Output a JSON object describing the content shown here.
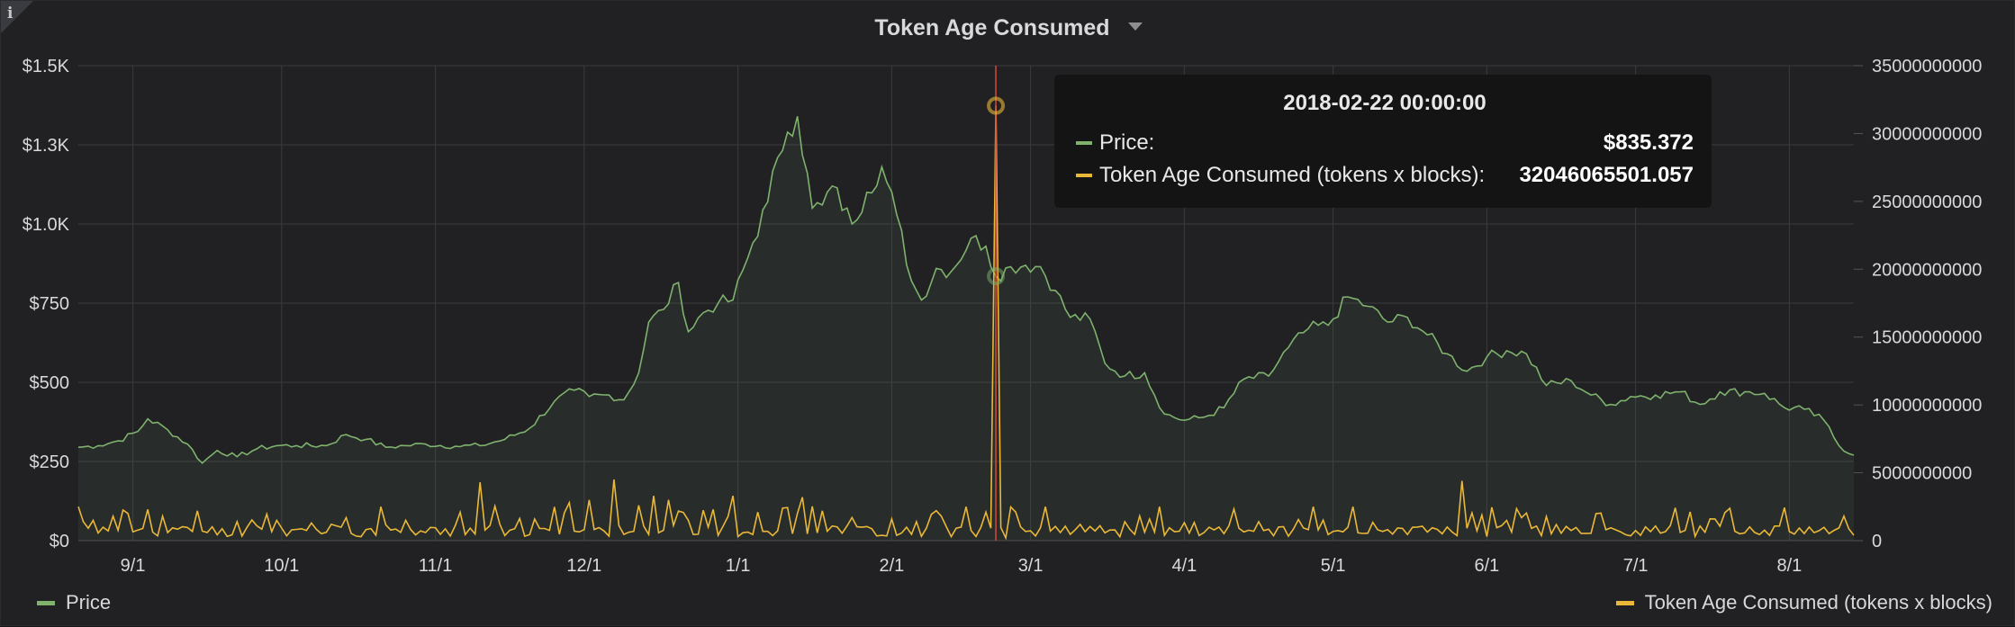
{
  "panel": {
    "title": "Token Age Consumed",
    "info_icon": "info-icon",
    "menu_icon": "caret-down-icon"
  },
  "colors": {
    "price": "#7eb26d",
    "tac": "#eab839",
    "cursor": "#d44a3a",
    "grid": "#3a3b3e",
    "tick": "#d8d9da"
  },
  "tooltip": {
    "time": "2018-02-22 00:00:00",
    "rows": [
      {
        "label": "Price:",
        "value": "$835.372"
      },
      {
        "label": "Token Age Consumed (tokens x blocks):",
        "value": "32046065501.057"
      }
    ]
  },
  "legend": {
    "left": "Price",
    "right": "Token Age Consumed (tokens x blocks)"
  },
  "chart_data": {
    "type": "line",
    "title": "Token Age Consumed",
    "x_range": [
      "2017-08-21",
      "2018-08-14"
    ],
    "x_ticks": [
      "9/1",
      "10/1",
      "11/1",
      "12/1",
      "1/1",
      "2/1",
      "3/1",
      "4/1",
      "5/1",
      "6/1",
      "7/1",
      "8/1"
    ],
    "y_left": {
      "min": 0,
      "max": 1500,
      "ticks": [
        "$0",
        "$250",
        "$500",
        "$750",
        "$1.0K",
        "$1.3K",
        "$1.5K"
      ]
    },
    "y_right": {
      "min": 0,
      "max": 35000000000,
      "ticks": [
        "0",
        "5000000000",
        "10000000000",
        "15000000000",
        "20000000000",
        "25000000000",
        "30000000000",
        "35000000000"
      ]
    },
    "grid": true,
    "legend_placement": "bottom",
    "cursor_date": "2018-02-22",
    "series": [
      {
        "name": "Price",
        "axis": "left",
        "fill": true,
        "points": [
          [
            "2017-08-21",
            295
          ],
          [
            "2017-08-25",
            300
          ],
          [
            "2017-08-29",
            315
          ],
          [
            "2017-09-02",
            345
          ],
          [
            "2017-09-04",
            385
          ],
          [
            "2017-09-08",
            350
          ],
          [
            "2017-09-12",
            305
          ],
          [
            "2017-09-15",
            245
          ],
          [
            "2017-09-18",
            285
          ],
          [
            "2017-09-22",
            265
          ],
          [
            "2017-09-26",
            290
          ],
          [
            "2017-09-30",
            300
          ],
          [
            "2017-10-04",
            300
          ],
          [
            "2017-10-10",
            300
          ],
          [
            "2017-10-14",
            335
          ],
          [
            "2017-10-18",
            320
          ],
          [
            "2017-10-22",
            295
          ],
          [
            "2017-10-26",
            300
          ],
          [
            "2017-10-30",
            305
          ],
          [
            "2017-11-05",
            298
          ],
          [
            "2017-11-10",
            300
          ],
          [
            "2017-11-15",
            320
          ],
          [
            "2017-11-20",
            355
          ],
          [
            "2017-11-25",
            440
          ],
          [
            "2017-11-29",
            475
          ],
          [
            "2017-12-02",
            455
          ],
          [
            "2017-12-06",
            460
          ],
          [
            "2017-12-09",
            445
          ],
          [
            "2017-12-12",
            530
          ],
          [
            "2017-12-14",
            690
          ],
          [
            "2017-12-17",
            730
          ],
          [
            "2017-12-20",
            815
          ],
          [
            "2017-12-22",
            660
          ],
          [
            "2017-12-25",
            720
          ],
          [
            "2017-12-28",
            750
          ],
          [
            "2017-12-31",
            760
          ],
          [
            "2018-01-04",
            940
          ],
          [
            "2018-01-07",
            1070
          ],
          [
            "2018-01-09",
            1210
          ],
          [
            "2018-01-11",
            1290
          ],
          [
            "2018-01-13",
            1340
          ],
          [
            "2018-01-16",
            1050
          ],
          [
            "2018-01-18",
            1060
          ],
          [
            "2018-01-20",
            1120
          ],
          [
            "2018-01-24",
            1000
          ],
          [
            "2018-01-27",
            1100
          ],
          [
            "2018-01-30",
            1180
          ],
          [
            "2018-02-02",
            1030
          ],
          [
            "2018-02-05",
            820
          ],
          [
            "2018-02-07",
            760
          ],
          [
            "2018-02-10",
            860
          ],
          [
            "2018-02-13",
            850
          ],
          [
            "2018-02-17",
            955
          ],
          [
            "2018-02-20",
            930
          ],
          [
            "2018-02-22",
            835
          ],
          [
            "2018-02-25",
            865
          ],
          [
            "2018-02-28",
            870
          ],
          [
            "2018-03-03",
            865
          ],
          [
            "2018-03-06",
            790
          ],
          [
            "2018-03-09",
            705
          ],
          [
            "2018-03-13",
            700
          ],
          [
            "2018-03-16",
            560
          ],
          [
            "2018-03-20",
            520
          ],
          [
            "2018-03-24",
            530
          ],
          [
            "2018-03-28",
            400
          ],
          [
            "2018-04-01",
            380
          ],
          [
            "2018-04-05",
            390
          ],
          [
            "2018-04-09",
            420
          ],
          [
            "2018-04-13",
            510
          ],
          [
            "2018-04-18",
            520
          ],
          [
            "2018-04-22",
            610
          ],
          [
            "2018-04-26",
            670
          ],
          [
            "2018-04-30",
            680
          ],
          [
            "2018-05-04",
            770
          ],
          [
            "2018-05-08",
            740
          ],
          [
            "2018-05-12",
            690
          ],
          [
            "2018-05-16",
            705
          ],
          [
            "2018-05-20",
            650
          ],
          [
            "2018-05-24",
            590
          ],
          [
            "2018-05-28",
            535
          ],
          [
            "2018-06-01",
            580
          ],
          [
            "2018-06-05",
            600
          ],
          [
            "2018-06-09",
            590
          ],
          [
            "2018-06-13",
            490
          ],
          [
            "2018-06-18",
            505
          ],
          [
            "2018-06-22",
            460
          ],
          [
            "2018-06-26",
            430
          ],
          [
            "2018-06-30",
            455
          ],
          [
            "2018-07-05",
            460
          ],
          [
            "2018-07-10",
            470
          ],
          [
            "2018-07-14",
            430
          ],
          [
            "2018-07-18",
            470
          ],
          [
            "2018-07-23",
            470
          ],
          [
            "2018-07-27",
            465
          ],
          [
            "2018-07-31",
            420
          ],
          [
            "2018-08-04",
            415
          ],
          [
            "2018-08-08",
            380
          ],
          [
            "2018-08-11",
            300
          ],
          [
            "2018-08-14",
            270
          ]
        ]
      },
      {
        "name": "Token Age Consumed (tokens x blocks)",
        "axis": "right",
        "fill": false,
        "baseline": 700000000,
        "points": [
          [
            "2017-08-21",
            2500000000
          ],
          [
            "2017-08-24",
            1500000000
          ],
          [
            "2017-08-28",
            1800000000
          ],
          [
            "2017-08-31",
            2000000000
          ],
          [
            "2017-09-04",
            2300000000
          ],
          [
            "2017-09-07",
            1800000000
          ],
          [
            "2017-09-14",
            2200000000
          ],
          [
            "2017-09-22",
            1400000000
          ],
          [
            "2017-09-30",
            1500000000
          ],
          [
            "2017-10-07",
            1300000000
          ],
          [
            "2017-10-14",
            1700000000
          ],
          [
            "2017-10-21",
            2500000000
          ],
          [
            "2017-10-26",
            1500000000
          ],
          [
            "2017-11-05",
            1100000000
          ],
          [
            "2017-11-10",
            4300000000
          ],
          [
            "2017-11-14",
            1200000000
          ],
          [
            "2017-11-21",
            1600000000
          ],
          [
            "2017-11-28",
            2800000000
          ],
          [
            "2017-12-02",
            3000000000
          ],
          [
            "2017-12-07",
            4500000000
          ],
          [
            "2017-12-12",
            2600000000
          ],
          [
            "2017-12-15",
            3300000000
          ],
          [
            "2017-12-18",
            3000000000
          ],
          [
            "2017-12-22",
            1500000000
          ],
          [
            "2017-12-27",
            2300000000
          ],
          [
            "2017-12-31",
            3300000000
          ],
          [
            "2018-01-05",
            2100000000
          ],
          [
            "2018-01-10",
            2400000000
          ],
          [
            "2018-01-14",
            3200000000
          ],
          [
            "2018-01-18",
            2200000000
          ],
          [
            "2018-01-24",
            1700000000
          ],
          [
            "2018-02-01",
            1600000000
          ],
          [
            "2018-02-06",
            1400000000
          ],
          [
            "2018-02-11",
            1800000000
          ],
          [
            "2018-02-16",
            2500000000
          ],
          [
            "2018-02-20",
            2100000000
          ],
          [
            "2018-02-22",
            32046065501
          ],
          [
            "2018-02-24",
            200000000
          ],
          [
            "2018-03-10",
            800000000
          ],
          [
            "2018-03-20",
            1400000000
          ],
          [
            "2018-03-27",
            2500000000
          ],
          [
            "2018-04-05",
            600000000
          ],
          [
            "2018-04-20",
            1000000000
          ],
          [
            "2018-04-27",
            2500000000
          ],
          [
            "2018-05-05",
            2500000000
          ],
          [
            "2018-05-18",
            1000000000
          ],
          [
            "2018-05-27",
            4400000000
          ],
          [
            "2018-06-10",
            900000000
          ],
          [
            "2018-06-25",
            800000000
          ],
          [
            "2018-07-10",
            600000000
          ],
          [
            "2018-07-25",
            600000000
          ],
          [
            "2018-08-05",
            1000000000
          ],
          [
            "2018-08-12",
            1800000000
          ],
          [
            "2018-08-14",
            400000000
          ]
        ]
      }
    ]
  }
}
